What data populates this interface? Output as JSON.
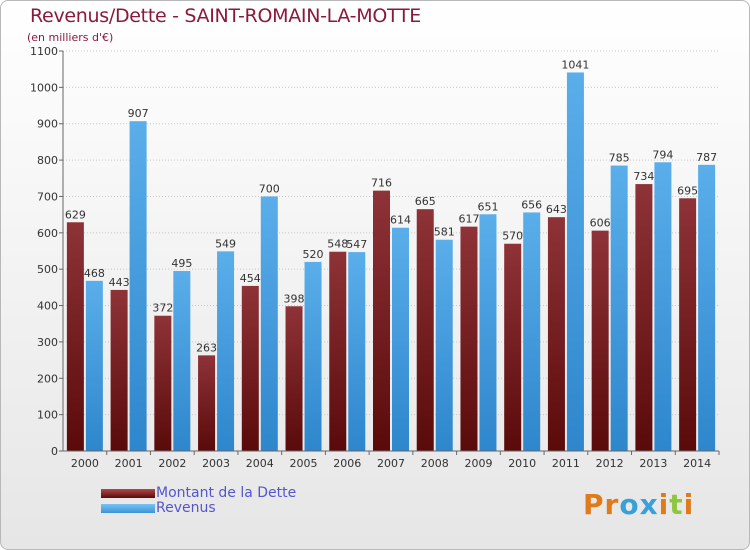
{
  "title": "Revenus/Dette - SAINT-ROMAIN-LA-MOTTE",
  "subtitle": "(en milliers d'€)",
  "logo": {
    "text": "Proxiti",
    "colors": [
      "#e07a1a",
      "#e07a1a",
      "#3aa0d8",
      "#3aa0d8",
      "#e07a1a",
      "#8ec641",
      "#e07a1a"
    ]
  },
  "legend": [
    {
      "label": "Montant de la Dette",
      "color": "#8b2a2a"
    },
    {
      "label": "Revenus",
      "color": "#4ba2e0"
    }
  ],
  "colors": {
    "debt": "#7a1e1e",
    "revenue": "#3a95d8"
  },
  "chart_data": {
    "type": "bar",
    "title": "Revenus/Dette - SAINT-ROMAIN-LA-MOTTE",
    "subtitle": "(en milliers d'€)",
    "categories": [
      "2000",
      "2001",
      "2002",
      "2003",
      "2004",
      "2005",
      "2006",
      "2007",
      "2008",
      "2009",
      "2010",
      "2011",
      "2012",
      "2013",
      "2014"
    ],
    "series": [
      {
        "name": "Montant de la Dette",
        "values": [
          629,
          443,
          372,
          263,
          454,
          398,
          548,
          716,
          665,
          617,
          570,
          643,
          606,
          734,
          695
        ]
      },
      {
        "name": "Revenus",
        "values": [
          468,
          907,
          495,
          549,
          700,
          520,
          547,
          614,
          581,
          651,
          656,
          1041,
          785,
          794,
          787
        ]
      }
    ],
    "ylim": [
      0,
      1100
    ],
    "yticks": [
      0,
      100,
      200,
      300,
      400,
      500,
      600,
      700,
      800,
      900,
      1000,
      1100
    ],
    "grid": true,
    "legend_position": "bottom-left"
  }
}
